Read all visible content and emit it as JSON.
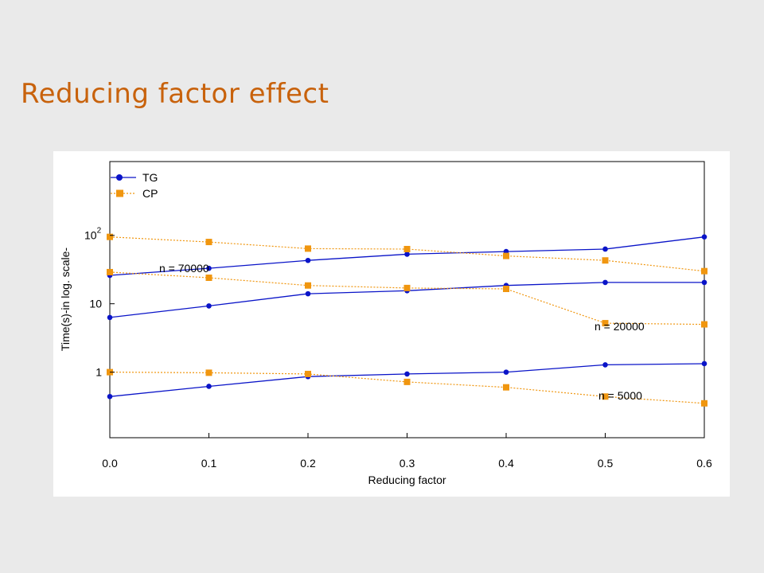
{
  "slide": {
    "title": "Reducing factor effect"
  },
  "chart_data": {
    "type": "line",
    "title": "",
    "xlabel": "Reducing factor",
    "ylabel": "Time(s)-in log. scale-",
    "x": [
      0.0,
      0.1,
      0.2,
      0.3,
      0.4,
      0.5,
      0.6
    ],
    "x_tick_labels": [
      "0.0",
      "0.1",
      "0.2",
      "0.3",
      "0.4",
      "0.5",
      "0.6"
    ],
    "xlim": [
      0.0,
      0.6
    ],
    "y_scale": "log",
    "ylim": [
      0.11,
      1200
    ],
    "y_ticks": [
      {
        "value": 1,
        "label": "1"
      },
      {
        "value": 10,
        "label": "10"
      },
      {
        "value": 100,
        "label": "10",
        "sup": "2"
      }
    ],
    "grid": false,
    "legend": {
      "placement": "top-left",
      "entries": [
        {
          "name": "TG",
          "color": "#0a14c8",
          "marker": "circle",
          "line": "solid"
        },
        {
          "name": "CP",
          "color": "#f0960f",
          "marker": "square",
          "line": "dotted"
        }
      ]
    },
    "annotations": [
      "n = 70000",
      "n = 20000",
      "n = 5000"
    ],
    "series": [
      {
        "name": "TG",
        "group": "n = 70000",
        "values": [
          26,
          33,
          43,
          53,
          58,
          63,
          95
        ]
      },
      {
        "name": "CP",
        "group": "n = 70000",
        "values": [
          95,
          80,
          64,
          63,
          50,
          43,
          30
        ]
      },
      {
        "name": "TG",
        "group": "n = 20000",
        "values": [
          6.3,
          9.3,
          14,
          15.5,
          18.5,
          20.5,
          20.5
        ]
      },
      {
        "name": "CP",
        "group": "n = 20000",
        "values": [
          29,
          24,
          18.5,
          17,
          16.5,
          5.2,
          5.0
        ]
      },
      {
        "name": "TG",
        "group": "n = 5000",
        "values": [
          0.44,
          0.62,
          0.86,
          0.94,
          1.0,
          1.28,
          1.33
        ]
      },
      {
        "name": "CP",
        "group": "n = 5000",
        "values": [
          1.0,
          0.98,
          0.94,
          0.72,
          0.6,
          0.44,
          0.35
        ]
      }
    ]
  }
}
